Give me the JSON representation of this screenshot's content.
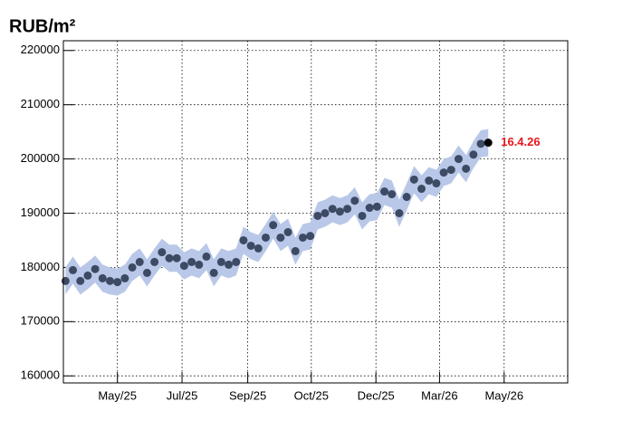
{
  "chart_data": {
    "type": "scatter",
    "title": "RUB/m²",
    "x": [
      71,
      78,
      85,
      92,
      99,
      106,
      113,
      120,
      127,
      134,
      141,
      148,
      155,
      162,
      169,
      176,
      183,
      190,
      197,
      204,
      211,
      218,
      225,
      232,
      239,
      246,
      253,
      260,
      267,
      274,
      281,
      288,
      295,
      302,
      309,
      316,
      323,
      330,
      337,
      344,
      351,
      358,
      365,
      372,
      379,
      386,
      393,
      400,
      407,
      414,
      421,
      428,
      435,
      442,
      449,
      456,
      463,
      470
    ],
    "series": [
      {
        "color": "#3d4a63",
        "band_color": "#b9c8e8",
        "values": [
          177500,
          179500,
          177500,
          178500,
          179700,
          178000,
          177500,
          177300,
          178000,
          180000,
          181000,
          179000,
          181000,
          182800,
          181700,
          181700,
          180300,
          181000,
          180500,
          182000,
          179000,
          181000,
          180500,
          181000,
          185000,
          184000,
          183500,
          185500,
          187800,
          185500,
          186500,
          183000,
          185500,
          185800,
          189500,
          190000,
          190800,
          190300,
          190800,
          192300,
          189500,
          191000,
          191200,
          194000,
          193500,
          190000,
          193000,
          196200,
          194500,
          196000,
          195500,
          197500,
          198000,
          200000,
          198200,
          200800,
          202800,
          203000
        ],
        "errors": [
          2500,
          2500,
          2500,
          2500,
          2500,
          2500,
          2500,
          2500,
          2500,
          2500,
          2500,
          2500,
          2500,
          2500,
          2500,
          2500,
          2500,
          2500,
          2500,
          2500,
          2500,
          2500,
          2500,
          2500,
          2500,
          2500,
          2500,
          2500,
          2500,
          2500,
          2500,
          2500,
          2500,
          2500,
          2500,
          2500,
          2500,
          2500,
          2500,
          2500,
          2500,
          2500,
          2500,
          2500,
          2500,
          2500,
          2500,
          2500,
          2500,
          2500,
          2500,
          2500,
          2500,
          2500,
          2500,
          2500,
          2500,
          2500
        ]
      }
    ],
    "highlight_color": "#000000",
    "annotation": "16.4.26",
    "annotation_color": "#e8161b",
    "xlim": [
      69,
      545
    ],
    "xticks": [
      {
        "value": 120,
        "label": "May/25"
      },
      {
        "value": 181,
        "label": "Jul/25"
      },
      {
        "value": 243,
        "label": "Sep/25"
      },
      {
        "value": 303,
        "label": "Oct/25"
      },
      {
        "value": 364,
        "label": "Dec/25"
      },
      {
        "value": 424,
        "label": "Mar/26"
      },
      {
        "value": 485,
        "label": "May/26"
      }
    ],
    "ylim": [
      158700,
      221800
    ],
    "yticks": [
      160000,
      170000,
      180000,
      190000,
      200000,
      210000,
      220000
    ],
    "grid": true
  }
}
